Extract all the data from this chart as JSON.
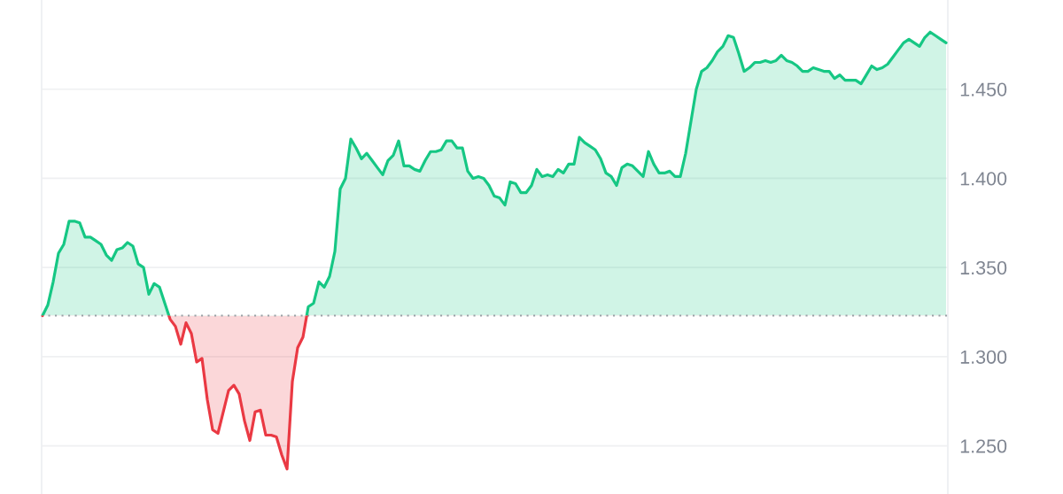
{
  "chart_data": {
    "type": "area",
    "categories": [
      null,
      null,
      null,
      null,
      null,
      null,
      null,
      null,
      null,
      null,
      null,
      null,
      null,
      null,
      null,
      null,
      null,
      null,
      null,
      null,
      null,
      null,
      null,
      null,
      null,
      null,
      null,
      null,
      null,
      null,
      null,
      null,
      null,
      null,
      null,
      null,
      null,
      null,
      null,
      null,
      null,
      null,
      null,
      null,
      null,
      null,
      null,
      null,
      null,
      null,
      null,
      null,
      null,
      null,
      null,
      null,
      null,
      null,
      null,
      null,
      null,
      null,
      null,
      null,
      null,
      null,
      null,
      null,
      null,
      null,
      null,
      null,
      null,
      null,
      null,
      null,
      null,
      null,
      null,
      null,
      null,
      null,
      null,
      null,
      null,
      null,
      null,
      null,
      null,
      null,
      null,
      null,
      null,
      null,
      null,
      null,
      null,
      null,
      null,
      null,
      null,
      null,
      null,
      null,
      null,
      null,
      null,
      null,
      null,
      null,
      null,
      null,
      null,
      null,
      null,
      null,
      null,
      null,
      null,
      null,
      null,
      null,
      null,
      null,
      null,
      null,
      null,
      null,
      null,
      null,
      null,
      null,
      null,
      null,
      null,
      null,
      null,
      null,
      null,
      null,
      null,
      null,
      null,
      null,
      null,
      null,
      null,
      null,
      null,
      null,
      null,
      null,
      null,
      null,
      null,
      null,
      null,
      null,
      null,
      null,
      null,
      null,
      null,
      null,
      null,
      null,
      null,
      null,
      null,
      null,
      null
    ],
    "series": [
      {
        "values": [
          1.323,
          1.329,
          1.342,
          1.358,
          1.363,
          1.376,
          1.376,
          1.375,
          1.367,
          1.367,
          1.365,
          1.363,
          1.357,
          1.354,
          1.36,
          1.361,
          1.364,
          1.362,
          1.352,
          1.35,
          1.335,
          1.341,
          1.339,
          1.33,
          1.321,
          1.317,
          1.307,
          1.319,
          1.313,
          1.297,
          1.299,
          1.276,
          1.259,
          1.257,
          1.269,
          1.281,
          1.284,
          1.279,
          1.264,
          1.253,
          1.269,
          1.27,
          1.256,
          1.256,
          1.255,
          1.245,
          1.237,
          1.286,
          1.305,
          1.311,
          1.328,
          1.33,
          1.342,
          1.339,
          1.345,
          1.359,
          1.394,
          1.4,
          1.422,
          1.417,
          1.411,
          1.414,
          1.41,
          1.406,
          1.402,
          1.41,
          1.413,
          1.421,
          1.407,
          1.407,
          1.405,
          1.404,
          1.41,
          1.415,
          1.415,
          1.416,
          1.421,
          1.421,
          1.417,
          1.417,
          1.404,
          1.4,
          1.401,
          1.4,
          1.396,
          1.39,
          1.389,
          1.385,
          1.398,
          1.397,
          1.392,
          1.392,
          1.396,
          1.405,
          1.401,
          1.402,
          1.401,
          1.405,
          1.403,
          1.408,
          1.408,
          1.423,
          1.42,
          1.418,
          1.416,
          1.411,
          1.403,
          1.401,
          1.396,
          1.406,
          1.408,
          1.407,
          1.404,
          1.401,
          1.415,
          1.408,
          1.403,
          1.403,
          1.404,
          1.401,
          1.401,
          1.414,
          1.432,
          1.45,
          1.46,
          1.462,
          1.466,
          1.471,
          1.474,
          1.48,
          1.479,
          1.47,
          1.46,
          1.462,
          1.465,
          1.465,
          1.466,
          1.465,
          1.466,
          1.469,
          1.466,
          1.465,
          1.463,
          1.46,
          1.46,
          1.462,
          1.461,
          1.46,
          1.46,
          1.456,
          1.458,
          1.455,
          1.455,
          1.455,
          1.453,
          1.458,
          1.463,
          1.461,
          1.462,
          1.464,
          1.468,
          1.472,
          1.476,
          1.478,
          1.476,
          1.474,
          1.479,
          1.482,
          1.48,
          1.478,
          1.476
        ],
        "colors": [
          "#16c784",
          "#16c784",
          "#16c784",
          "#16c784",
          "#16c784",
          "#16c784",
          "#16c784",
          "#16c784",
          "#16c784",
          "#16c784",
          "#16c784",
          "#16c784",
          "#16c784",
          "#16c784",
          "#16c784",
          "#16c784",
          "#16c784",
          "#16c784",
          "#16c784",
          "#16c784",
          "#16c784",
          "#16c784",
          "#16c784",
          "#16c784",
          "#ea3943",
          "#ea3943",
          "#ea3943",
          "#ea3943",
          "#ea3943",
          "#ea3943",
          "#ea3943",
          "#ea3943",
          "#ea3943",
          "#ea3943",
          "#ea3943",
          "#ea3943",
          "#ea3943",
          "#ea3943",
          "#ea3943",
          "#ea3943",
          "#ea3943",
          "#ea3943",
          "#ea3943",
          "#ea3943",
          "#ea3943",
          "#ea3943",
          "#ea3943",
          "#ea3943",
          "#ea3943",
          "#ea3943",
          "#16c784",
          "#16c784",
          "#16c784",
          "#16c784",
          "#16c784",
          "#16c784",
          "#16c784",
          "#16c784",
          "#16c784",
          "#16c784",
          "#16c784",
          "#16c784",
          "#16c784",
          "#16c784",
          "#16c784",
          "#16c784",
          "#16c784",
          "#16c784",
          "#16c784",
          "#16c784",
          "#16c784",
          "#16c784",
          "#16c784",
          "#16c784",
          "#16c784",
          "#16c784",
          "#16c784",
          "#16c784",
          "#16c784",
          "#16c784",
          "#16c784",
          "#16c784",
          "#16c784",
          "#16c784",
          "#16c784",
          "#16c784",
          "#16c784",
          "#16c784",
          "#16c784",
          "#16c784",
          "#16c784",
          "#16c784",
          "#16c784",
          "#16c784",
          "#16c784",
          "#16c784",
          "#16c784",
          "#16c784",
          "#16c784",
          "#16c784",
          "#16c784",
          "#16c784",
          "#16c784",
          "#16c784",
          "#16c784",
          "#16c784",
          "#16c784",
          "#16c784",
          "#16c784",
          "#16c784",
          "#16c784",
          "#16c784",
          "#16c784",
          "#16c784",
          "#16c784",
          "#16c784",
          "#16c784",
          "#16c784",
          "#16c784",
          "#16c784",
          "#16c784",
          "#16c784",
          "#16c784",
          "#16c784",
          "#16c784",
          "#16c784",
          "#16c784",
          "#16c784",
          "#16c784",
          "#16c784",
          "#16c784",
          "#16c784",
          "#16c784",
          "#16c784",
          "#16c784",
          "#16c784",
          "#16c784",
          "#16c784",
          "#16c784",
          "#16c784",
          "#16c784",
          "#16c784",
          "#16c784",
          "#16c784",
          "#16c784",
          "#16c784",
          "#16c784",
          "#16c784",
          "#16c784",
          "#16c784",
          "#16c784",
          "#16c784",
          "#16c784",
          "#16c784",
          "#16c784",
          "#16c784",
          "#16c784",
          "#16c784",
          "#16c784",
          "#16c784",
          "#16c784",
          "#16c784",
          "#16c784",
          "#16c784",
          "#16c784",
          "#16c784",
          "#16c784",
          "#16c784",
          "#16c784",
          "#16c784",
          "#16c784"
        ]
      }
    ],
    "ylim": [
      1.223,
      1.5
    ],
    "yticks": [
      {
        "value": 1.25,
        "label": "1.250"
      },
      {
        "value": 1.3,
        "label": "1.300"
      },
      {
        "value": 1.35,
        "label": "1.350"
      },
      {
        "value": 1.4,
        "label": "1.400"
      },
      {
        "value": 1.45,
        "label": "1.450"
      }
    ],
    "grid": "y",
    "tick_labels": "y",
    "ref_lines": [
      {
        "axis": "y",
        "value": 1.323,
        "color": "#9aa0a6",
        "line_style": "dotted"
      }
    ]
  }
}
